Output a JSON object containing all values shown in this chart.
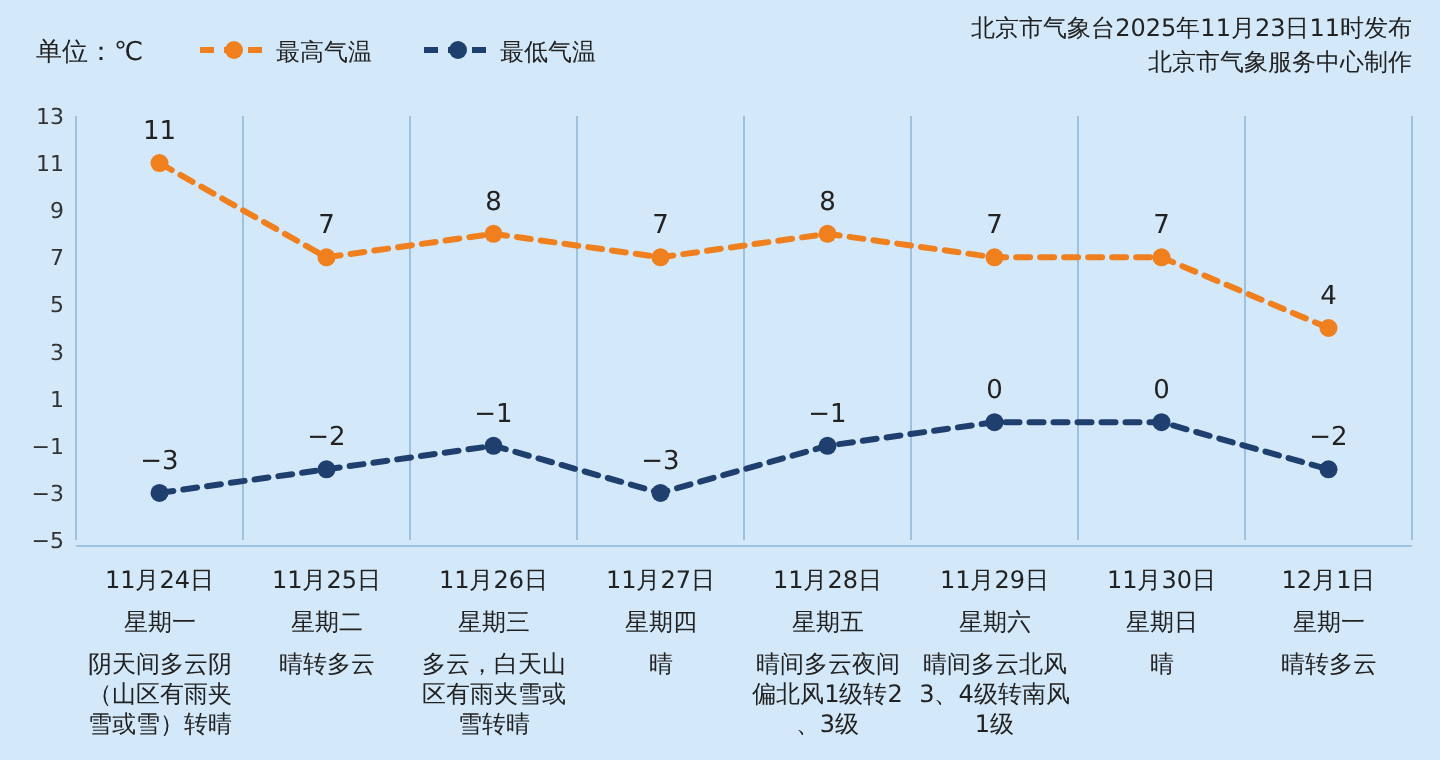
{
  "chart_data": {
    "type": "line",
    "ylabel": "单位：℃",
    "categories": [
      "11月24日",
      "11月25日",
      "11月26日",
      "11月27日",
      "11月28日",
      "11月29日",
      "11月30日",
      "12月1日"
    ],
    "series": [
      {
        "name": "最高气温",
        "color": "#f07f1e",
        "values": [
          11,
          7,
          8,
          7,
          8,
          7,
          7,
          4
        ]
      },
      {
        "name": "最低气温",
        "color": "#1f3f6e",
        "values": [
          -3,
          -2,
          -1,
          -3,
          -1,
          0,
          0,
          -2
        ]
      }
    ],
    "ylim": [
      -5,
      13
    ],
    "yticks": [
      -5,
      -3,
      -1,
      1,
      3,
      5,
      7,
      9,
      11,
      13
    ],
    "data_labels": true,
    "legend": "top left",
    "marker": "circle",
    "line_style": "dashed",
    "annotations": [
      "北京市气象台2025年11月23日11时发布",
      "北京市气象服务中心制作",
      "星期一",
      "星期二",
      "星期三",
      "星期四",
      "星期五",
      "星期六",
      "星期日",
      "星期一",
      "阴天间多云阴（山区有雨夹雪或雪）转晴",
      "晴转多云",
      "多云，白天山区有雨夹雪或雪转晴",
      "晴",
      "晴间多云夜间偏北风1级转2、3级",
      "晴间多云北风3、4级转南风1级",
      "晴",
      "晴转多云"
    ]
  }
}
